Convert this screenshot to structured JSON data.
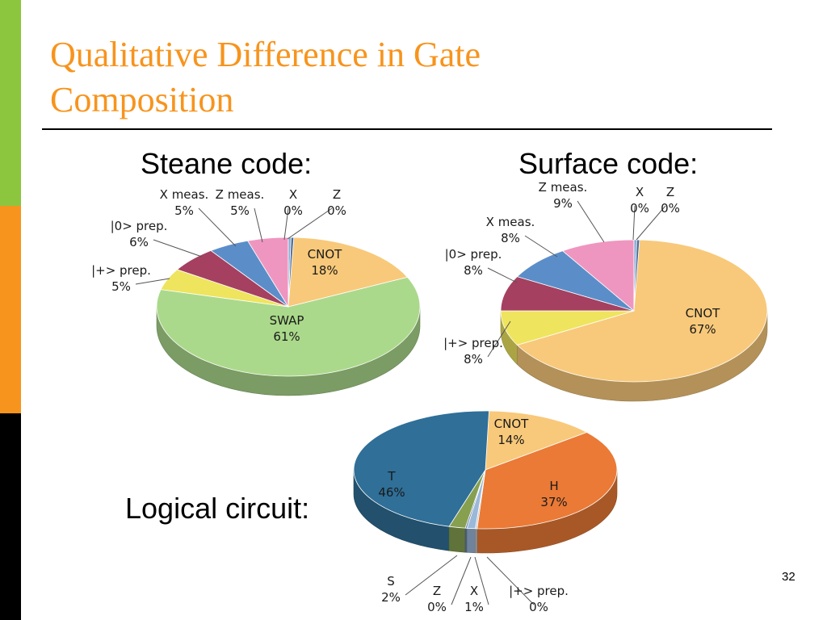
{
  "slide": {
    "title_line1": "Qualitative Difference in Gate",
    "title_line2": "Composition",
    "page_number": "32",
    "accent_colors": {
      "green": "#8cc63f",
      "orange": "#f7941d",
      "black": "#000000",
      "title": "#f7941d"
    }
  },
  "headings": {
    "steane": "Steane code:",
    "surface": "Surface code:",
    "logical": "Logical circuit:"
  },
  "chart_data": [
    {
      "type": "pie",
      "title": "Steane code:",
      "style": "3d",
      "slices": [
        {
          "label": "CNOT",
          "value": 18,
          "display": "18%",
          "color": "#f8c97a"
        },
        {
          "label": "SWAP",
          "value": 61,
          "display": "61%",
          "color": "#abd98b"
        },
        {
          "label": "|+> prep.",
          "value": 5,
          "display": "5%",
          "color": "#eee45e"
        },
        {
          "label": "|0> prep.",
          "value": 6,
          "display": "6%",
          "color": "#a54060"
        },
        {
          "label": "X meas.",
          "value": 5,
          "display": "5%",
          "color": "#5b8ec9"
        },
        {
          "label": "Z meas.",
          "value": 5,
          "display": "5%",
          "color": "#ef96c0"
        },
        {
          "label": "X",
          "value": 0,
          "display": "0%",
          "color": "#8aa8d0"
        },
        {
          "label": "Z",
          "value": 0,
          "display": "0%",
          "color": "#4a6d9e"
        }
      ]
    },
    {
      "type": "pie",
      "title": "Surface code:",
      "style": "3d",
      "slices": [
        {
          "label": "CNOT",
          "value": 67,
          "display": "67%",
          "color": "#f8c97a"
        },
        {
          "label": "|+> prep.",
          "value": 8,
          "display": "8%",
          "color": "#eee45e"
        },
        {
          "label": "|0> prep.",
          "value": 8,
          "display": "8%",
          "color": "#a54060"
        },
        {
          "label": "X meas.",
          "value": 8,
          "display": "8%",
          "color": "#5b8ec9"
        },
        {
          "label": "Z meas.",
          "value": 9,
          "display": "9%",
          "color": "#ef96c0"
        },
        {
          "label": "X",
          "value": 0,
          "display": "0%",
          "color": "#8aa8d0"
        },
        {
          "label": "Z",
          "value": 0,
          "display": "0%",
          "color": "#4a6d9e"
        }
      ]
    },
    {
      "type": "pie",
      "title": "Logical circuit:",
      "style": "3d",
      "slices": [
        {
          "label": "CNOT",
          "value": 14,
          "display": "14%",
          "color": "#f8c97a"
        },
        {
          "label": "H",
          "value": 37,
          "display": "37%",
          "color": "#ea7a36"
        },
        {
          "label": "|+> prep.",
          "value": 0,
          "display": "0%",
          "color": "#c9c9c9"
        },
        {
          "label": "X",
          "value": 1,
          "display": "1%",
          "color": "#9ab8d8"
        },
        {
          "label": "Z",
          "value": 0,
          "display": "0%",
          "color": "#6c82a6"
        },
        {
          "label": "S",
          "value": 2,
          "display": "2%",
          "color": "#86a050"
        },
        {
          "label": "T",
          "value": 46,
          "display": "46%",
          "color": "#2f6f98"
        }
      ]
    }
  ]
}
